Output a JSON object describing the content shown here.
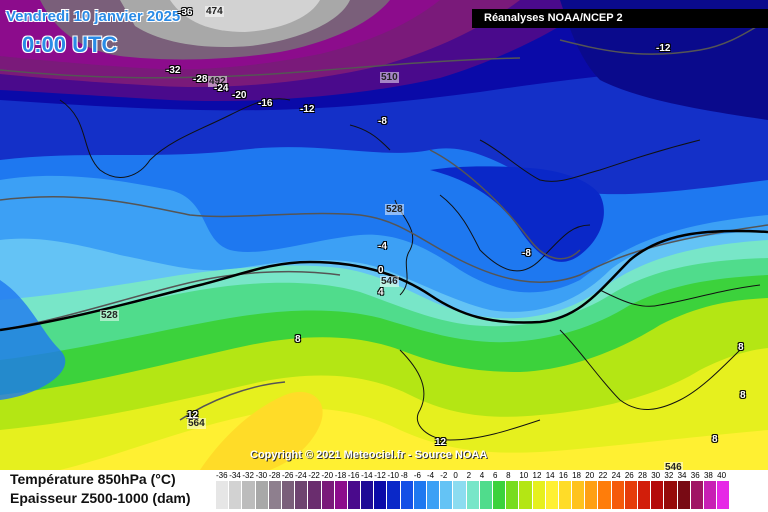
{
  "header": {
    "date": "Vendredi 10 janvier 2025",
    "time": "0:00 UTC",
    "source": "Réanalyses NOAA/NCEP 2"
  },
  "copyright": "Copyright © 2021 Meteociel.fr - Source NOAA",
  "legend": {
    "temp_label": "Température 850hPa (°C)",
    "thickness_label": "Epaisseur Z500-1000 (dam)",
    "ticks": [
      "-36",
      "-34",
      "-32",
      "-30",
      "-28",
      "-26",
      "-24",
      "-22",
      "-20",
      "-18",
      "-16",
      "-14",
      "-12",
      "-10",
      "-8",
      "-6",
      "-4",
      "-2",
      "0",
      "2",
      "4",
      "6",
      "8",
      "10",
      "12",
      "14",
      "16",
      "18",
      "20",
      "22",
      "24",
      "26",
      "28",
      "30",
      "32",
      "34",
      "36",
      "38",
      "40"
    ],
    "colors": [
      "#e6e6e6",
      "#d2d2d2",
      "#bcbcbc",
      "#a8a8a8",
      "#8e7f8e",
      "#7a5f7a",
      "#6e4470",
      "#6a2d6e",
      "#7a1a7a",
      "#8c0c8c",
      "#4a0a8c",
      "#1e0a96",
      "#0a0aa8",
      "#0a28c8",
      "#1450e6",
      "#1e78f0",
      "#3ca0f5",
      "#64c3f5",
      "#8cdcf0",
      "#78e6c8",
      "#50dc8c",
      "#3cd23c",
      "#78dc1e",
      "#b4e614",
      "#e6f01e",
      "#fff032",
      "#ffdc28",
      "#ffc31e",
      "#ffa014",
      "#ff7d0a",
      "#f55a0a",
      "#e63c0a",
      "#d21e0a",
      "#b40a0a",
      "#960a0a",
      "#780a14",
      "#a01464",
      "#c81eb4",
      "#e628e6"
    ]
  },
  "map_labels": [
    {
      "text": "474"
    },
    {
      "text": "-36"
    },
    {
      "text": "-32"
    },
    {
      "text": "-28"
    },
    {
      "text": "492"
    },
    {
      "text": "-24"
    },
    {
      "text": "-20"
    },
    {
      "text": "-16"
    },
    {
      "text": "-12"
    },
    {
      "text": "510"
    },
    {
      "text": "-8"
    },
    {
      "text": "-12"
    },
    {
      "text": "528"
    },
    {
      "text": "-4"
    },
    {
      "text": "-8"
    },
    {
      "text": "0"
    },
    {
      "text": "546"
    },
    {
      "text": "4"
    },
    {
      "text": "528"
    },
    {
      "text": "8"
    },
    {
      "text": "12"
    },
    {
      "text": "564"
    },
    {
      "text": "12"
    },
    {
      "text": "8"
    },
    {
      "text": "8"
    },
    {
      "text": "546"
    },
    {
      "text": "8"
    }
  ]
}
